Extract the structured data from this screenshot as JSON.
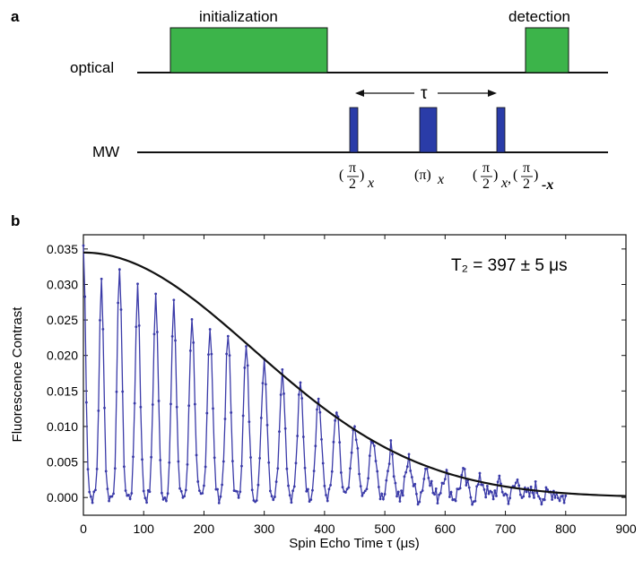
{
  "panel_a": {
    "letter": "a",
    "optical_label": "optical",
    "mw_label": "MW",
    "init_label": "initialization",
    "detect_label": "detection",
    "tau_label": "τ",
    "pulse_labels": [
      {
        "num": "π",
        "den": "2",
        "sub": "x"
      },
      {
        "text": "(π)",
        "sub": "x"
      },
      {
        "num": "π",
        "den": "2",
        "sub": "x",
        "sep": ",",
        "num2": "π",
        "den2": "2",
        "sub2": "-x"
      }
    ],
    "colors": {
      "optical": "#3cb44a",
      "mw": "#2a3ca8"
    }
  },
  "panel_b": {
    "letter": "b",
    "annotation": "T₂ = 397 ± 5 μs"
  },
  "chart_data": {
    "type": "line",
    "xlabel": "Spin Echo Time τ (μs)",
    "ylabel": "Fluorescence Contrast",
    "xlim": [
      0,
      900
    ],
    "ylim": [
      -0.0025,
      0.037
    ],
    "xticks": [
      0,
      100,
      200,
      300,
      400,
      500,
      600,
      700,
      800,
      900
    ],
    "yticks": [
      0.0,
      0.005,
      0.01,
      0.015,
      0.02,
      0.025,
      0.03,
      0.035
    ],
    "ytick_labels": [
      "0.000",
      "0.005",
      "0.010",
      "0.015",
      "0.020",
      "0.025",
      "0.030",
      "0.035"
    ],
    "grid": false,
    "series": [
      {
        "kind": "data",
        "color": "#3a3aa8",
        "revival_period": 30,
        "revival_times": [
          0,
          30,
          60,
          90,
          120,
          150,
          180,
          210,
          240,
          270,
          300,
          330,
          360,
          390,
          420,
          450,
          480,
          510,
          540,
          570,
          600,
          630,
          660,
          690,
          720,
          750,
          780
        ],
        "revival_peaks": [
          0.0355,
          0.0305,
          0.0328,
          0.03,
          0.0285,
          0.027,
          0.0255,
          0.0242,
          0.0228,
          0.021,
          0.0195,
          0.0178,
          0.0158,
          0.014,
          0.012,
          0.0101,
          0.0085,
          0.0068,
          0.0052,
          0.0045,
          0.0036,
          0.0031,
          0.0024,
          0.0018,
          0.0022,
          0.0012,
          0.001
        ],
        "baseline": 0.0,
        "x_end": 800
      },
      {
        "kind": "fit",
        "color": "#111111",
        "amplitude": 0.0345,
        "T2": 397,
        "exponent": 2,
        "x_end": 900
      }
    ]
  }
}
